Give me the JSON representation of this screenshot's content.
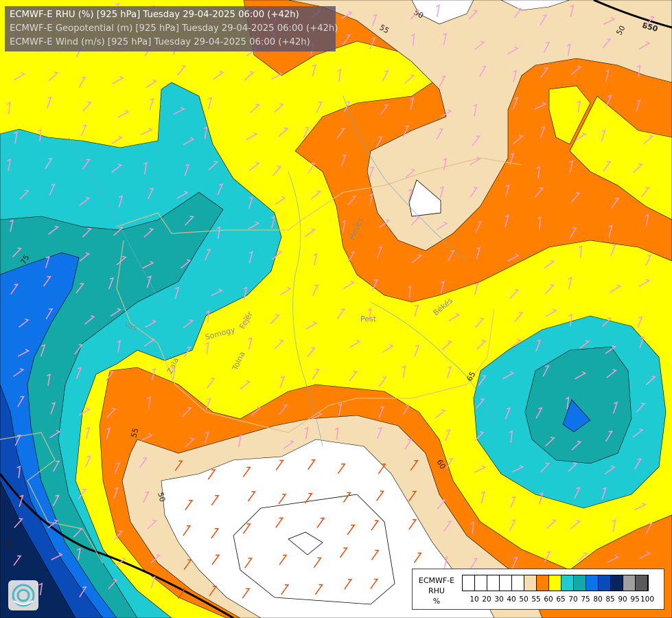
{
  "header": {
    "line1": "ECMWF-E RHU (%) [925 hPa] Tuesday 29-04-2025 06:00 (+42h)",
    "line2": "ECMWF-E Geopotential (m) [925 hPa] Tuesday 29-04-2025 06:00 (+42h)",
    "line3": "ECMWF-E Wind (m/s) [925 hPa] Tuesday 29-04-2025 06:00 (+42h)"
  },
  "contour_labels": [
    "50",
    "55",
    "50",
    "55",
    "50",
    "75",
    "65",
    "50",
    "55",
    "60",
    "60",
    "65",
    "860",
    "850",
    "860"
  ],
  "place_labels": [
    "Pest",
    "Vas",
    "Somogy",
    "Fejér",
    "Tolna",
    "Zala",
    "Heves",
    "Békés"
  ],
  "legend": {
    "model": "ECMWF-E",
    "var": "RHU",
    "unit": "%",
    "ticks": [
      "10",
      "20",
      "30",
      "40",
      "50",
      "55",
      "60",
      "65",
      "70",
      "75",
      "80",
      "85",
      "90",
      "95",
      "100"
    ],
    "colors": [
      "#ffffff",
      "#ffffff",
      "#ffffff",
      "#ffffff",
      "#ffffff",
      "#f5deb3",
      "#ff8000",
      "#ffff00",
      "#1ecbd2",
      "#14a9a6",
      "#0e72e8",
      "#0b4bb8",
      "#08265e",
      "#a0a0a0",
      "#5a5a5a"
    ]
  },
  "colors": {
    "rh_50_55": "#f5deb3",
    "rh_55_60": "#ff8000",
    "rh_60_65": "#ffff00",
    "rh_65_70": "#1ecbd2",
    "rh_70_75": "#14a9a6",
    "rh_75_80": "#0e72e8",
    "rh_80_85": "#0b4bb8",
    "rh_85_90": "#08265e",
    "below_50": "#ffffff"
  },
  "logo": "ogimet-logo-icon"
}
